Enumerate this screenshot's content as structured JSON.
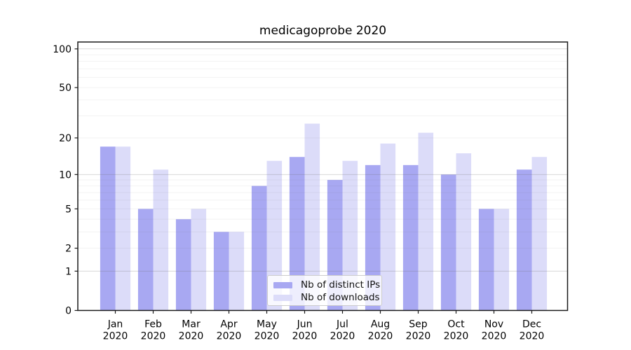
{
  "chart_data": {
    "type": "bar",
    "title": "medicagoprobe 2020",
    "categories": [
      "Jan",
      "Feb",
      "Mar",
      "Apr",
      "May",
      "Jun",
      "Jul",
      "Aug",
      "Sep",
      "Oct",
      "Nov",
      "Dec"
    ],
    "category_year": "2020",
    "series": [
      {
        "name": "Nb of distinct IPs",
        "color": "#a8a8f2",
        "values": [
          17,
          5,
          4,
          3,
          8,
          14,
          9,
          12,
          12,
          10,
          5,
          11
        ]
      },
      {
        "name": "Nb of downloads",
        "color": "#dcdcf9",
        "values": [
          17,
          11,
          5,
          3,
          13,
          26,
          13,
          18,
          22,
          15,
          5,
          14
        ]
      }
    ],
    "yscale": "log1p",
    "ylim": [
      0,
      113
    ],
    "ytick_values": [
      0,
      1,
      2,
      5,
      10,
      20,
      50,
      100
    ],
    "ytick_labels": [
      "0",
      "1",
      "2",
      "5",
      "10",
      "20",
      "50",
      "100"
    ],
    "grid_major_values": [
      1,
      10,
      100
    ],
    "grid": "on",
    "legend_position": "lower center",
    "xlabel": "",
    "ylabel": ""
  }
}
